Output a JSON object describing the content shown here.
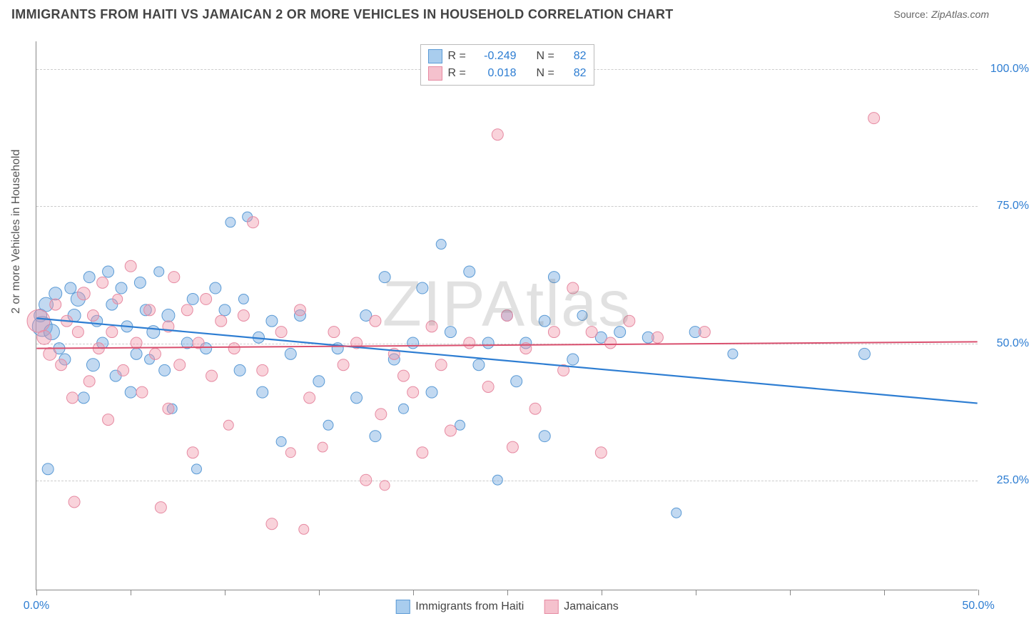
{
  "title": "IMMIGRANTS FROM HAITI VS JAMAICAN 2 OR MORE VEHICLES IN HOUSEHOLD CORRELATION CHART",
  "source_label": "Source:",
  "source_value": "ZipAtlas.com",
  "ylabel": "2 or more Vehicles in Household",
  "watermark": "ZIPAtlas",
  "chart": {
    "type": "scatter",
    "xlim": [
      0,
      50
    ],
    "ylim": [
      5,
      105
    ],
    "xticks": [
      0,
      5,
      10,
      15,
      20,
      25,
      30,
      35,
      40,
      45,
      50
    ],
    "xtick_labels": {
      "0": "0.0%",
      "50": "50.0%"
    },
    "ygridlines": [
      25,
      50,
      75,
      100
    ],
    "ytick_labels": {
      "25": "25.0%",
      "50": "50.0%",
      "75": "75.0%",
      "100": "100.0%"
    },
    "background_color": "#ffffff",
    "grid_color": "#cccccc",
    "axis_color": "#888888"
  },
  "series": [
    {
      "key": "haiti",
      "label": "Immigrants from Haiti",
      "color_fill": "rgba(120,170,225,0.45)",
      "color_stroke": "#5a9ad5",
      "swatch_fill": "#a9cdee",
      "swatch_border": "#5a9ad5",
      "r_value": "-0.249",
      "n_value": "82",
      "trend": {
        "y_at_xmin": 54.5,
        "y_at_xmax": 39.0,
        "stroke": "#2d7dd2",
        "width": 2.2
      },
      "points": [
        [
          0.2,
          55,
          9
        ],
        [
          0.3,
          53,
          14
        ],
        [
          0.5,
          57,
          10
        ],
        [
          0.8,
          52,
          11
        ],
        [
          1.0,
          59,
          9
        ],
        [
          1.2,
          49,
          8
        ],
        [
          0.6,
          27,
          8
        ],
        [
          1.5,
          47,
          8
        ],
        [
          1.8,
          60,
          8
        ],
        [
          2.0,
          55,
          9
        ],
        [
          2.2,
          58,
          10
        ],
        [
          2.5,
          40,
          8
        ],
        [
          2.8,
          62,
          8
        ],
        [
          3.0,
          46,
          9
        ],
        [
          3.2,
          54,
          8
        ],
        [
          3.5,
          50,
          8
        ],
        [
          3.8,
          63,
          8
        ],
        [
          4.0,
          57,
          8
        ],
        [
          4.2,
          44,
          8
        ],
        [
          4.5,
          60,
          8
        ],
        [
          4.8,
          53,
          8
        ],
        [
          5.0,
          41,
          8
        ],
        [
          5.3,
          48,
          8
        ],
        [
          5.5,
          61,
          8
        ],
        [
          5.8,
          56,
          8
        ],
        [
          6.0,
          47,
          7
        ],
        [
          6.2,
          52,
          9
        ],
        [
          6.5,
          63,
          7
        ],
        [
          6.8,
          45,
          8
        ],
        [
          7.0,
          55,
          9
        ],
        [
          7.2,
          38,
          7
        ],
        [
          8.0,
          50,
          8
        ],
        [
          8.3,
          58,
          8
        ],
        [
          8.5,
          27,
          7
        ],
        [
          9.0,
          49,
          8
        ],
        [
          9.5,
          60,
          8
        ],
        [
          10.0,
          56,
          8
        ],
        [
          10.3,
          72,
          7
        ],
        [
          10.8,
          45,
          8
        ],
        [
          11.0,
          58,
          7
        ],
        [
          11.2,
          73,
          7
        ],
        [
          11.8,
          51,
          8
        ],
        [
          12.0,
          41,
          8
        ],
        [
          12.5,
          54,
          8
        ],
        [
          13.0,
          32,
          7
        ],
        [
          13.5,
          48,
          8
        ],
        [
          14.0,
          55,
          8
        ],
        [
          15.0,
          43,
          8
        ],
        [
          15.5,
          35,
          7
        ],
        [
          16.0,
          49,
          8
        ],
        [
          17.0,
          40,
          8
        ],
        [
          17.5,
          55,
          8
        ],
        [
          18.0,
          33,
          8
        ],
        [
          18.5,
          62,
          8
        ],
        [
          19.0,
          47,
          8
        ],
        [
          19.5,
          38,
          7
        ],
        [
          20.0,
          50,
          8
        ],
        [
          20.5,
          60,
          8
        ],
        [
          21.0,
          41,
          8
        ],
        [
          21.5,
          68,
          7
        ],
        [
          22.0,
          52,
          8
        ],
        [
          22.5,
          35,
          7
        ],
        [
          23.0,
          63,
          8
        ],
        [
          23.5,
          46,
          8
        ],
        [
          24.0,
          50,
          8
        ],
        [
          24.5,
          25,
          7
        ],
        [
          25.0,
          55,
          8
        ],
        [
          25.5,
          43,
          8
        ],
        [
          26.0,
          50,
          8
        ],
        [
          27.0,
          33,
          8
        ],
        [
          27.0,
          54,
          8
        ],
        [
          27.5,
          62,
          8
        ],
        [
          28.5,
          47,
          8
        ],
        [
          29.0,
          55,
          7
        ],
        [
          30.0,
          51,
          8
        ],
        [
          31.0,
          52,
          8
        ],
        [
          32.5,
          51,
          8
        ],
        [
          34.0,
          19,
          7
        ],
        [
          35.0,
          52,
          8
        ],
        [
          37.0,
          48,
          7
        ],
        [
          44.0,
          48,
          8
        ]
      ]
    },
    {
      "key": "jamaican",
      "label": "Jamaicans",
      "color_fill": "rgba(240,150,170,0.42)",
      "color_stroke": "#e68aa2",
      "swatch_fill": "#f5c1cd",
      "swatch_border": "#e68aa2",
      "r_value": "0.018",
      "n_value": "82",
      "trend": {
        "y_at_xmin": 49.0,
        "y_at_xmax": 50.2,
        "stroke": "#d94f6e",
        "width": 2.0
      },
      "points": [
        [
          0.1,
          54,
          16
        ],
        [
          0.4,
          51,
          10
        ],
        [
          0.7,
          48,
          9
        ],
        [
          1.0,
          57,
          8
        ],
        [
          1.3,
          46,
          8
        ],
        [
          1.6,
          54,
          8
        ],
        [
          1.9,
          40,
          8
        ],
        [
          2.0,
          21,
          8
        ],
        [
          2.2,
          52,
          8
        ],
        [
          2.5,
          59,
          9
        ],
        [
          2.8,
          43,
          8
        ],
        [
          3.0,
          55,
          8
        ],
        [
          3.3,
          49,
          8
        ],
        [
          3.5,
          61,
          8
        ],
        [
          3.8,
          36,
          8
        ],
        [
          4.0,
          52,
          8
        ],
        [
          4.3,
          58,
          7
        ],
        [
          4.6,
          45,
          8
        ],
        [
          5.0,
          64,
          8
        ],
        [
          5.3,
          50,
          8
        ],
        [
          5.6,
          41,
          8
        ],
        [
          6.0,
          56,
          8
        ],
        [
          6.3,
          48,
          8
        ],
        [
          6.6,
          20,
          8
        ],
        [
          7.0,
          38,
          8
        ],
        [
          7.0,
          53,
          8
        ],
        [
          7.3,
          62,
          8
        ],
        [
          7.6,
          46,
          8
        ],
        [
          8.0,
          56,
          8
        ],
        [
          8.3,
          30,
          8
        ],
        [
          8.6,
          50,
          8
        ],
        [
          9.0,
          58,
          8
        ],
        [
          9.3,
          44,
          8
        ],
        [
          9.8,
          54,
          8
        ],
        [
          10.2,
          35,
          7
        ],
        [
          10.5,
          49,
          8
        ],
        [
          11.0,
          55,
          8
        ],
        [
          11.5,
          72,
          8
        ],
        [
          12.0,
          45,
          8
        ],
        [
          12.5,
          17,
          8
        ],
        [
          13.0,
          52,
          8
        ],
        [
          13.5,
          30,
          7
        ],
        [
          14.0,
          56,
          8
        ],
        [
          14.2,
          16,
          7
        ],
        [
          14.5,
          40,
          8
        ],
        [
          15.2,
          31,
          7
        ],
        [
          15.8,
          52,
          8
        ],
        [
          16.3,
          46,
          8
        ],
        [
          17.0,
          50,
          8
        ],
        [
          17.5,
          25,
          8
        ],
        [
          18.0,
          54,
          8
        ],
        [
          18.3,
          37,
          8
        ],
        [
          18.5,
          24,
          7
        ],
        [
          19.0,
          48,
          8
        ],
        [
          19.5,
          44,
          8
        ],
        [
          20.0,
          41,
          8
        ],
        [
          20.5,
          30,
          8
        ],
        [
          21.0,
          53,
          8
        ],
        [
          21.5,
          46,
          8
        ],
        [
          22.0,
          34,
          8
        ],
        [
          23.0,
          50,
          8
        ],
        [
          24.0,
          42,
          8
        ],
        [
          24.5,
          88,
          8
        ],
        [
          25.0,
          55,
          8
        ],
        [
          25.3,
          31,
          8
        ],
        [
          26.0,
          49,
          8
        ],
        [
          26.5,
          38,
          8
        ],
        [
          27.5,
          52,
          8
        ],
        [
          28.0,
          45,
          8
        ],
        [
          28.5,
          60,
          8
        ],
        [
          29.5,
          52,
          8
        ],
        [
          30.0,
          30,
          8
        ],
        [
          30.5,
          50,
          8
        ],
        [
          31.5,
          54,
          8
        ],
        [
          33.0,
          51,
          8
        ],
        [
          35.5,
          52,
          8
        ],
        [
          44.5,
          91,
          8
        ]
      ]
    }
  ],
  "legend_stat_labels": {
    "r": "R =",
    "n": "N ="
  }
}
